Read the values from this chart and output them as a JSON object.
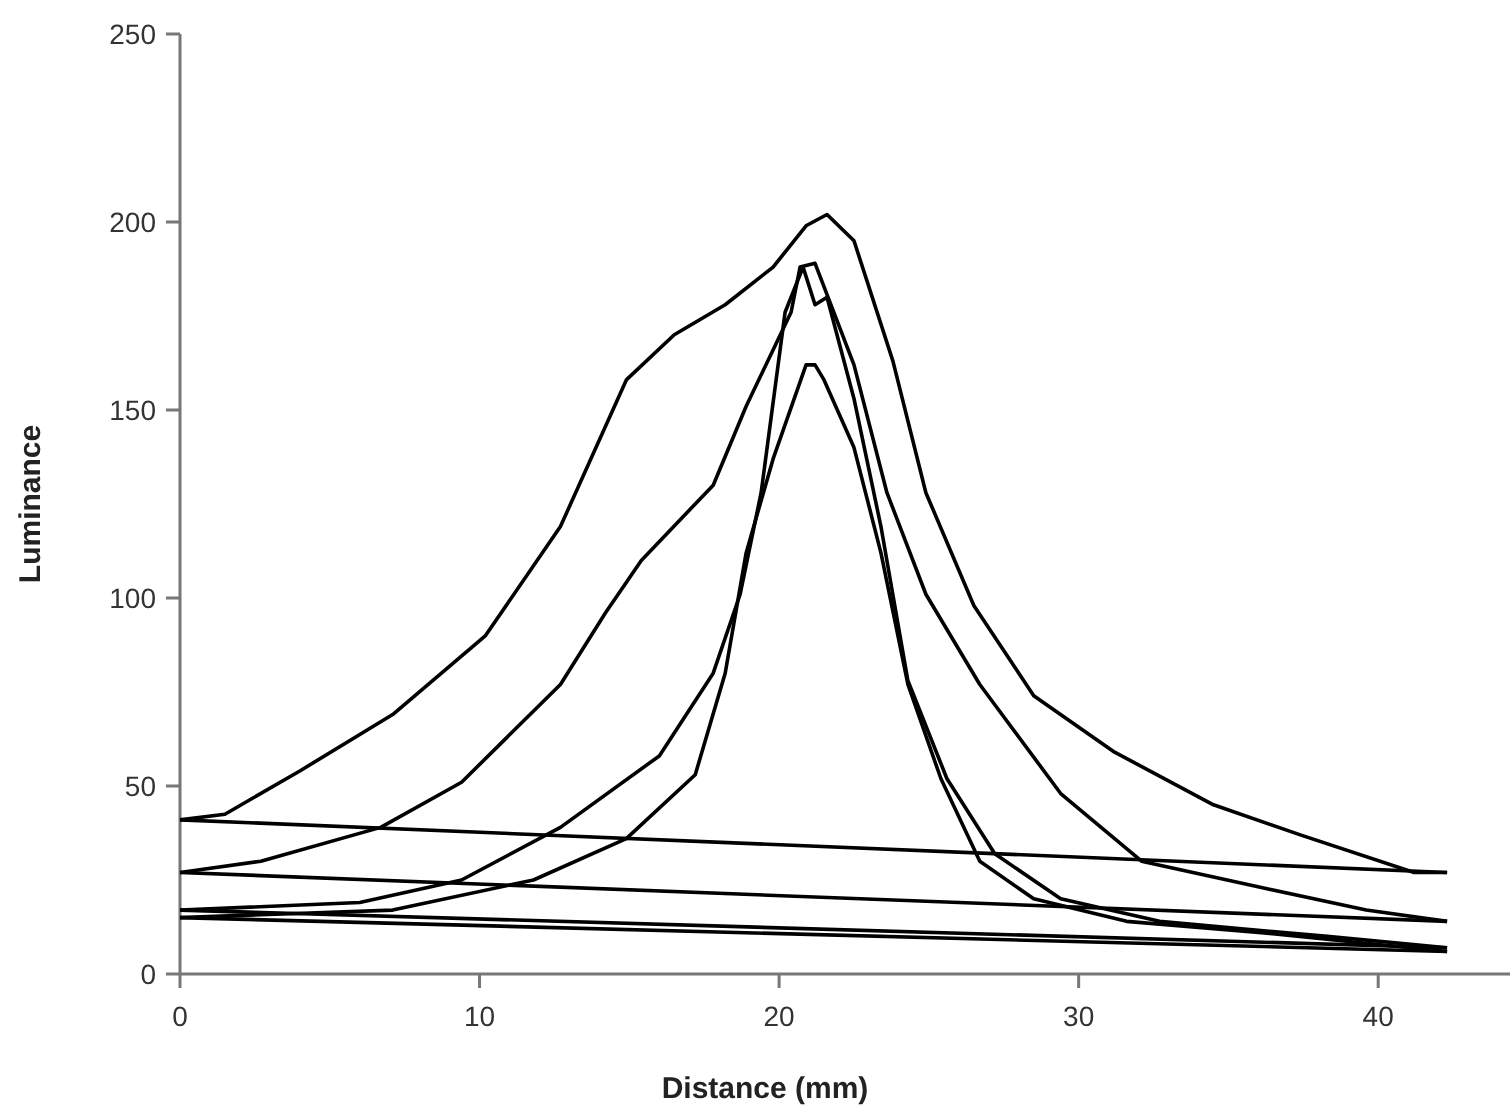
{
  "chart_data": {
    "type": "line",
    "xlabel": "Distance (mm)",
    "ylabel": "Luminance",
    "xlim": [
      0,
      44.4
    ],
    "ylim": [
      0,
      250
    ],
    "xticks": [
      0,
      10,
      20,
      30,
      40
    ],
    "yticks": [
      0,
      50,
      100,
      150,
      200,
      250
    ],
    "grid": false,
    "line_style": "solid",
    "series": [
      {
        "color": "#000000",
        "x": [
          0,
          1.5,
          4.0,
          7.1,
          10.2,
          12.7,
          14.9,
          16.5,
          18.2,
          19.8,
          20.9,
          21.6,
          22.5,
          23.8,
          24.9,
          26.5,
          28.5,
          31.2,
          34.5,
          37.4,
          41.2,
          42.3
        ],
        "values": [
          41,
          42.5,
          54,
          69,
          90,
          119,
          158,
          170,
          178,
          188,
          199,
          202,
          195,
          163,
          128,
          98,
          74,
          59,
          45,
          37,
          27,
          27
        ]
      },
      {
        "color": "#000000",
        "x": [
          0,
          42.3
        ],
        "values": [
          41,
          27
        ]
      },
      {
        "color": "#000000",
        "x": [
          0,
          2.7,
          6.7,
          9.4,
          12.7,
          14.2,
          15.4,
          17.8,
          18.9,
          20.4,
          20.7,
          21.2,
          22.5,
          23.6,
          24.9,
          26.7,
          29.4,
          32.1,
          36.1,
          39.6,
          42.3
        ],
        "values": [
          27,
          30,
          39,
          51,
          77,
          96,
          110,
          130,
          151,
          176,
          188,
          189,
          162,
          128,
          101,
          77,
          48,
          30,
          23,
          17,
          14
        ]
      },
      {
        "color": "#000000",
        "x": [
          0,
          42.3
        ],
        "values": [
          27,
          14
        ]
      },
      {
        "color": "#000000",
        "x": [
          0,
          6,
          9.4,
          12.7,
          16,
          17.8,
          18.7,
          19.4,
          20.2,
          20.8,
          21.2,
          21.6,
          22.5,
          23.4,
          24.3,
          25.6,
          27.2,
          29.4,
          32.7,
          38.3,
          42.3
        ],
        "values": [
          17,
          19,
          25,
          39,
          58,
          80,
          101,
          128,
          176,
          188,
          178,
          180,
          153,
          119,
          78,
          52,
          32,
          20,
          14,
          10,
          7
        ]
      },
      {
        "color": "#000000",
        "x": [
          0,
          42.3
        ],
        "values": [
          17,
          7
        ]
      },
      {
        "color": "#000000",
        "x": [
          0,
          7.1,
          11.8,
          14.9,
          17.2,
          18.2,
          18.9,
          19.8,
          20.9,
          21.2,
          21.5,
          22.5,
          23.4,
          24.3,
          25.4,
          26.7,
          28.5,
          31.6,
          36.1,
          42.3
        ],
        "values": [
          15,
          17,
          25,
          36,
          53,
          80,
          112,
          137,
          162,
          162,
          158,
          140,
          112,
          77,
          52,
          30,
          20,
          14,
          11,
          6
        ]
      },
      {
        "color": "#000000",
        "x": [
          0,
          42.3
        ],
        "values": [
          15,
          6
        ]
      }
    ]
  }
}
